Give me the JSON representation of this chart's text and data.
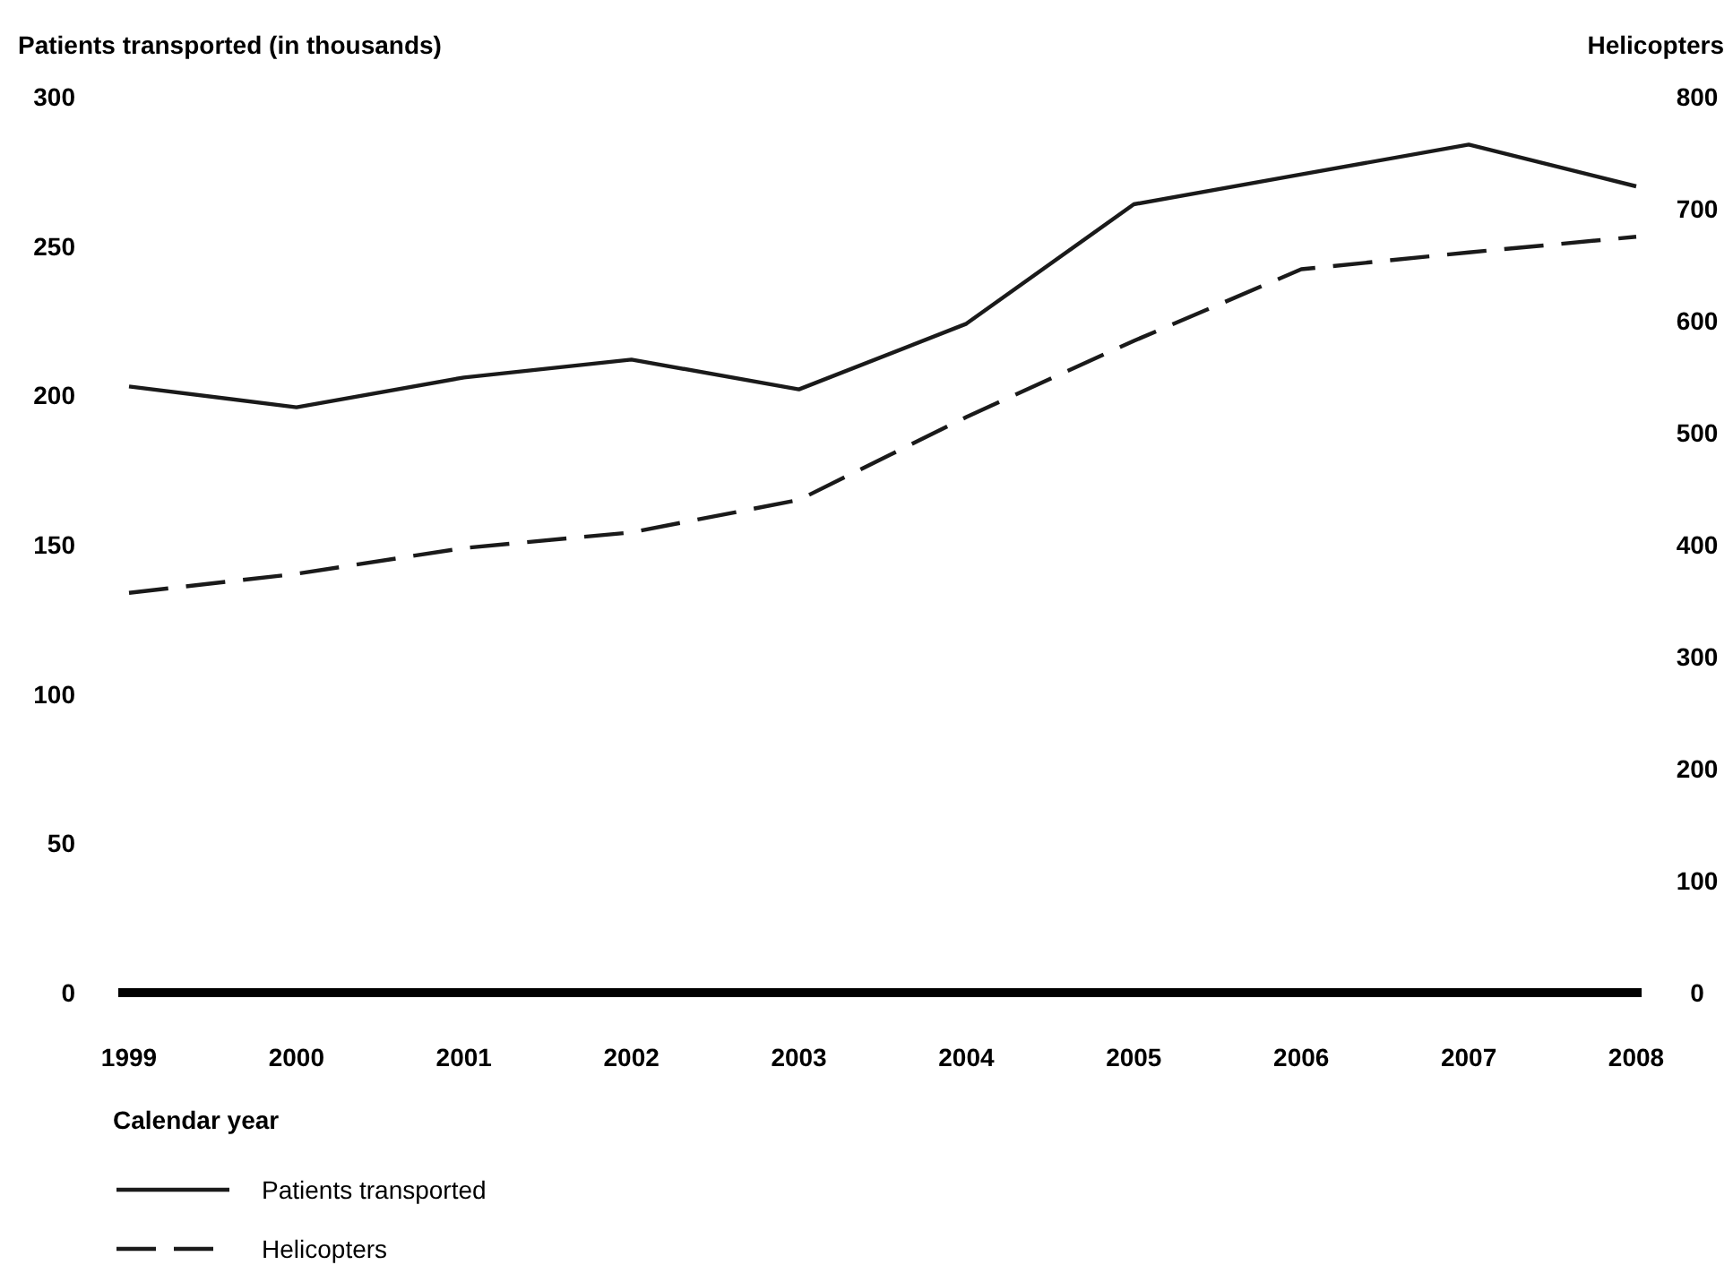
{
  "chart_data": {
    "type": "line",
    "xlabel": "Calendar year",
    "ylabel": "Patients transported (in thousands)",
    "y2label": "Helicopters",
    "categories": [
      "1999",
      "2000",
      "2001",
      "2002",
      "2003",
      "2004",
      "2005",
      "2006",
      "2007",
      "2008"
    ],
    "ylim": [
      0,
      300
    ],
    "yticks": [
      0,
      50,
      100,
      150,
      200,
      250,
      300
    ],
    "y2lim": [
      0,
      800
    ],
    "y2ticks": [
      0,
      100,
      200,
      300,
      400,
      500,
      600,
      700,
      800
    ],
    "grid": false,
    "legend": "bottom left",
    "marker": "none",
    "series": [
      {
        "name": "Patients transported",
        "color": "#1a1a1a",
        "line_style": "solid",
        "values": [
          203,
          196,
          206,
          212,
          202,
          224,
          264,
          274,
          284,
          270
        ]
      },
      {
        "name": "Helicopters",
        "color": "#1a1a1a",
        "line_style": "dashed",
        "axis": "y2",
        "values": [
          357,
          374,
          397,
          411,
          440,
          514,
          582,
          646,
          661,
          675
        ]
      }
    ]
  }
}
